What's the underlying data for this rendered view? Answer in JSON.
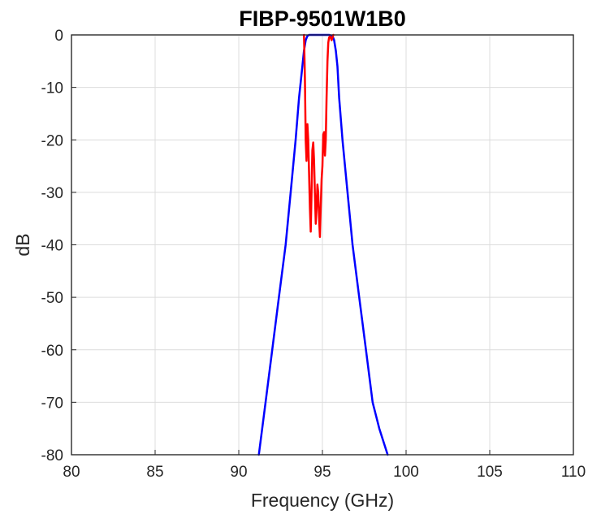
{
  "chart_data": {
    "type": "line",
    "title": "FIBP-9501W1B0",
    "xlabel": "Frequency (GHz)",
    "ylabel": "dB",
    "xlim": [
      80,
      110
    ],
    "ylim": [
      -80,
      0
    ],
    "xticks": [
      80,
      85,
      90,
      95,
      100,
      105,
      110
    ],
    "yticks": [
      0,
      -10,
      -20,
      -30,
      -40,
      -50,
      -60,
      -70,
      -80
    ],
    "grid": true,
    "legend": "none",
    "series": [
      {
        "color": "#0000ff",
        "x": [
          91.2,
          91.6,
          92.0,
          92.4,
          92.8,
          93.1,
          93.4,
          93.6,
          93.8,
          93.9,
          94.0,
          94.1,
          94.2,
          94.3,
          94.6,
          95.0,
          95.4,
          95.6,
          95.7,
          95.8,
          95.9,
          96.0,
          96.2,
          96.5,
          96.8,
          97.2,
          97.6,
          98.0,
          98.4,
          98.9
        ],
        "y": [
          -80,
          -70,
          -60,
          -50,
          -40,
          -30,
          -20,
          -12,
          -6,
          -3,
          -1,
          -0.2,
          0,
          0,
          0,
          0,
          0,
          -0.2,
          -1,
          -3,
          -6,
          -12,
          -20,
          -30,
          -40,
          -50,
          -60,
          -70,
          -75,
          -80
        ]
      },
      {
        "color": "#ff0000",
        "x": [
          93.9,
          93.95,
          94.0,
          94.05,
          94.1,
          94.15,
          94.2,
          94.25,
          94.3,
          94.35,
          94.4,
          94.45,
          94.5,
          94.55,
          94.6,
          94.65,
          94.7,
          94.75,
          94.8,
          94.85,
          94.9,
          94.95,
          95.0,
          95.05,
          95.1,
          95.15,
          95.2,
          95.25,
          95.3,
          95.35,
          95.4,
          95.45,
          95.5,
          95.55,
          95.6,
          95.65
        ],
        "y": [
          0,
          -8,
          -20,
          -24,
          -17,
          -20,
          -26,
          -33,
          -37.5,
          -30,
          -22,
          -20.5,
          -24,
          -30,
          -36,
          -33,
          -28.5,
          -30,
          -35,
          -38.5,
          -33,
          -27.5,
          -25,
          -19,
          -18.5,
          -23,
          -20,
          -12,
          -5,
          -1.5,
          -0.5,
          -0.3,
          -0.5,
          -1,
          -0.5,
          0
        ]
      }
    ]
  }
}
